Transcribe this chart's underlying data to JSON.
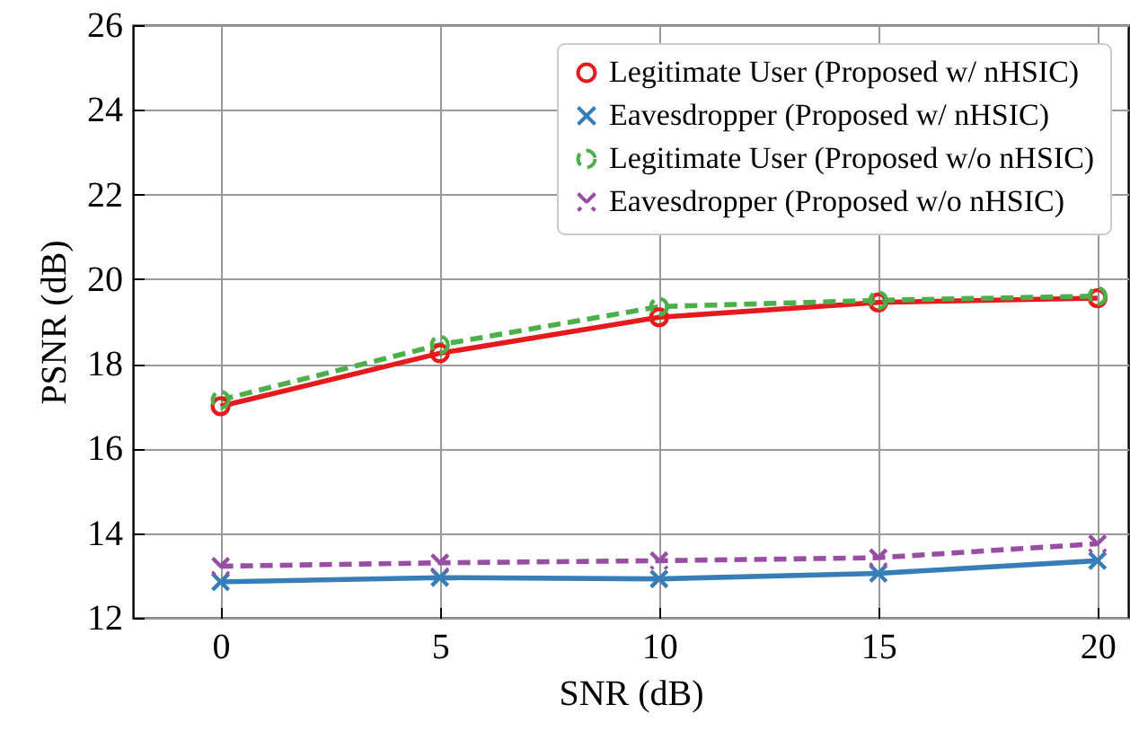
{
  "chart_data": {
    "type": "line",
    "xlabel": "SNR (dB)",
    "ylabel": "PSNR (dB)",
    "x": [
      0,
      5,
      10,
      15,
      20
    ],
    "xlim": [
      -2,
      20.7
    ],
    "xticks": [
      0,
      5,
      10,
      15,
      20
    ],
    "ylim": [
      12,
      26
    ],
    "yticks": [
      12,
      14,
      16,
      18,
      20,
      22,
      24,
      26
    ],
    "grid": true,
    "legend": "top right",
    "series": [
      {
        "name": "Legitimate User (Proposed w/ nHSIC)",
        "color": "#e41a1c",
        "marker": "circle",
        "line_style": "solid",
        "values": [
          17.0,
          18.25,
          19.1,
          19.45,
          19.55
        ]
      },
      {
        "name": "Eavesdropper (Proposed w/ nHSIC)",
        "color": "#377eb8",
        "marker": "cross",
        "line_style": "solid",
        "values": [
          12.85,
          12.95,
          12.92,
          13.05,
          13.35
        ]
      },
      {
        "name": "Legitimate User (Proposed w/o nHSIC)",
        "color": "#4daf4a",
        "marker": "circle",
        "line_style": "dashed",
        "values": [
          17.15,
          18.45,
          19.35,
          19.5,
          19.6
        ]
      },
      {
        "name": "Eavesdropper (Proposed w/o nHSIC)",
        "color": "#984ea3",
        "marker": "cross",
        "line_style": "dashed",
        "values": [
          13.22,
          13.3,
          13.35,
          13.42,
          13.75
        ]
      }
    ]
  }
}
